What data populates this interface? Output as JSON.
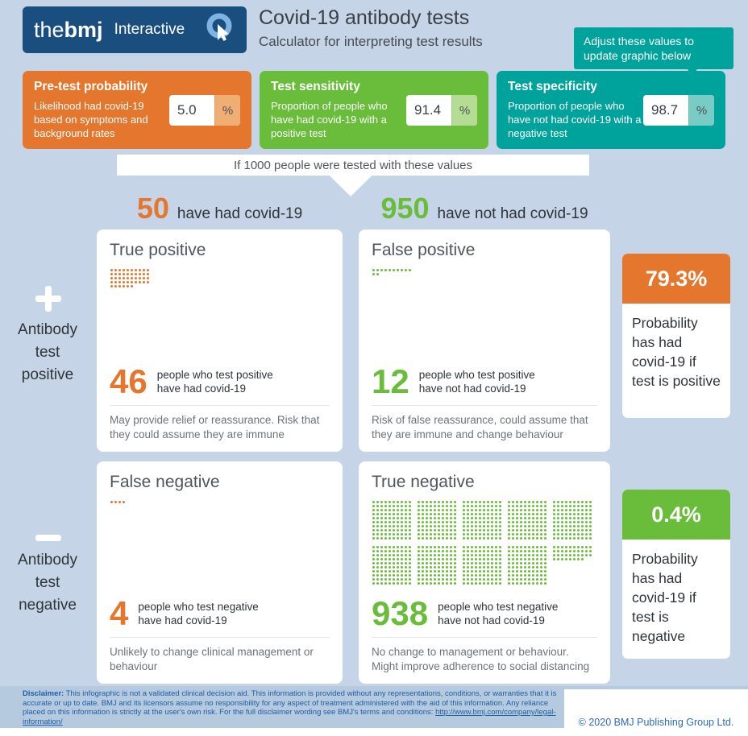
{
  "palette": {
    "background": "#c6d4e7",
    "bmj_blue": "#1a4e7f",
    "orange": "#e4762d",
    "green": "#69bd3a",
    "teal": "#00a39c"
  },
  "header": {
    "logo_the": "the",
    "logo_bmj": "bmj",
    "logo_suffix": "Interactive",
    "title": "Covid-19 antibody tests",
    "subtitle": "Calculator for interpreting test results",
    "tooltip": "Adjust these values to update graphic below"
  },
  "inputs": [
    {
      "label": "Pre-test probability",
      "description": "Likelihood had covid-19 based on symptoms and background rates",
      "value": "5.0",
      "unit": "%",
      "color": "#e4762d"
    },
    {
      "label": "Test sensitivity",
      "description": "Proportion of people who have had covid-19 with a positive test",
      "value": "91.4",
      "unit": "%",
      "color": "#69bd3a"
    },
    {
      "label": "Test specificity",
      "description": "Proportion of people who have not had covid-19 with a negative test",
      "value": "98.7",
      "unit": "%",
      "color": "#00a39c"
    }
  ],
  "banner": {
    "text": "If 1000 people were tested with these values"
  },
  "columns": {
    "had_count": "50",
    "had_label": "have had covid-19",
    "not_had_count": "950",
    "not_had_label": "have not had covid-19"
  },
  "rails": {
    "positive": {
      "lines": [
        "Antibody",
        "test",
        "positive"
      ]
    },
    "negative": {
      "lines": [
        "Antibody",
        "test",
        "negative"
      ]
    }
  },
  "cards": {
    "true_positive": {
      "title": "True positive",
      "count": 46,
      "caption_line1": "people who test positive",
      "caption_line2": "have had covid-19",
      "note": "May provide relief or reassurance. Risk that they could assume they are immune"
    },
    "false_positive": {
      "title": "False positive",
      "count": 12,
      "caption_line1": "people who test positive",
      "caption_line2": "have not had covid-19",
      "note": "Risk of false reassurance, could assume that they are immune and change behaviour"
    },
    "false_negative": {
      "title": "False negative",
      "count": 4,
      "caption_line1": "people who test negative",
      "caption_line2": "have had covid-19",
      "note": "Unlikely to change clinical management or behaviour"
    },
    "true_negative": {
      "title": "True negative",
      "count": 938,
      "caption_line1": "people who test negative",
      "caption_line2": "have not had covid-19",
      "note": "No change to management or behaviour. Might improve adherence to social distancing"
    }
  },
  "results": {
    "positive": {
      "value": "79.3%",
      "text": "Probability has had covid-19 if test is positive"
    },
    "negative": {
      "value": "0.4%",
      "text": "Probability has had covid-19 if test is negative"
    }
  },
  "footer": {
    "disclaimer_label": "Disclaimer:",
    "disclaimer_text": " This infographic is not a validated clinical decision aid. This information is provided without any representations, conditions, or warranties that it is accurate or up to date. BMJ and its licensors assume no responsibility for any aspect of treatment administered with the aid of this information. Any reliance placed on this information is strictly at the user's own risk. For the full disclaimer wording see BMJ's terms and conditions: ",
    "disclaimer_link": "http://www.bmj.com/company/legal-information/",
    "copyright": "© 2020 BMJ Publishing Group Ltd."
  }
}
